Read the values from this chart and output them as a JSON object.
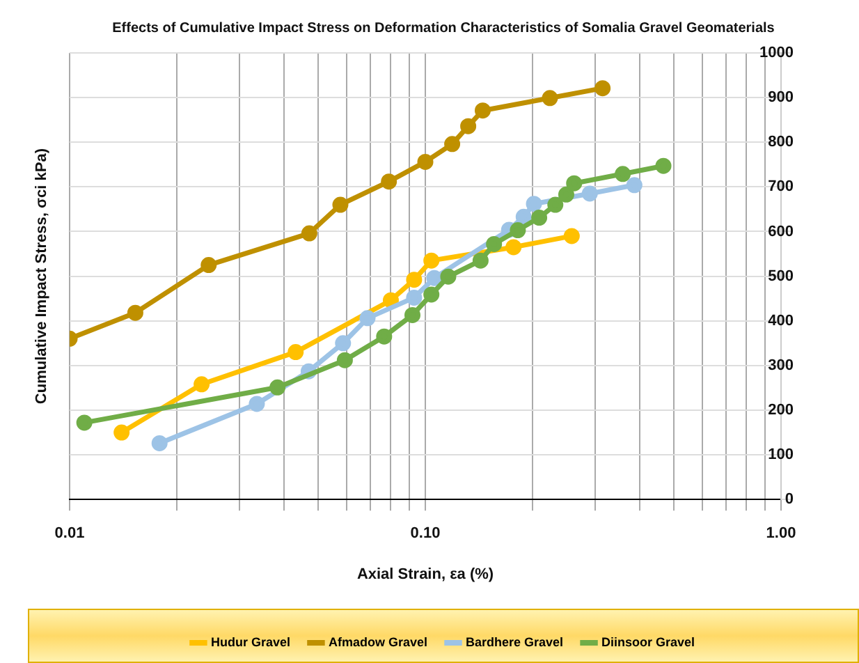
{
  "chart_data": {
    "type": "line",
    "title": "Effects of Cumulative Impact Stress on Deformation Characteristics of Somalia Gravel Geomaterials",
    "xlabel": "Axial Strain, εa (%)",
    "ylabel": "Cumulative Impact Stress, σci kPa)",
    "log": "x",
    "xlim": [
      0.01,
      1
    ],
    "ylim": [
      0,
      1000
    ],
    "xticks": [
      {
        "value": 0.01,
        "label": "0.01"
      },
      {
        "value": 0.02,
        "label": null
      },
      {
        "value": 0.03,
        "label": null
      },
      {
        "value": 0.04,
        "label": null
      },
      {
        "value": 0.05,
        "label": null
      },
      {
        "value": 0.06,
        "label": null
      },
      {
        "value": 0.07,
        "label": null
      },
      {
        "value": 0.08,
        "label": null
      },
      {
        "value": 0.09,
        "label": null
      },
      {
        "value": 0.1,
        "label": "0.10"
      },
      {
        "value": 0.2,
        "label": null
      },
      {
        "value": 0.3,
        "label": null
      },
      {
        "value": 0.4,
        "label": null
      },
      {
        "value": 0.5,
        "label": null
      },
      {
        "value": 0.6,
        "label": null
      },
      {
        "value": 0.7,
        "label": null
      },
      {
        "value": 0.8,
        "label": null
      },
      {
        "value": 0.9,
        "label": null
      },
      {
        "value": 1,
        "label": "1.00"
      }
    ],
    "yticks": [
      0,
      100,
      200,
      300,
      400,
      500,
      600,
      700,
      800,
      900,
      1000
    ],
    "grid": true,
    "legend": "bottom",
    "marker": "circle",
    "line_style": "solid",
    "series": [
      {
        "name": "Hudur Gravel",
        "color": "#ffc000",
        "x": [
          0.014,
          0.0235,
          0.0432,
          0.08,
          0.093,
          0.104,
          0.177,
          0.258
        ],
        "values": [
          150,
          258,
          330,
          446,
          492,
          535,
          565,
          590
        ]
      },
      {
        "name": "Afmadow Gravel",
        "color": "#bf9000",
        "x": [
          0.01,
          0.0153,
          0.0246,
          0.0472,
          0.0577,
          0.079,
          0.1,
          0.119,
          0.132,
          0.145,
          0.224,
          0.315
        ],
        "values": [
          360,
          418,
          525,
          596,
          660,
          712,
          756,
          796,
          836,
          871,
          899,
          921
        ]
      },
      {
        "name": "Bardhere Gravel",
        "color": "#9dc3e6",
        "x": [
          0.0179,
          0.0336,
          0.047,
          0.0587,
          0.0688,
          0.093,
          0.106,
          0.172,
          0.189,
          0.202,
          0.29,
          0.387
        ],
        "values": [
          126,
          214,
          287,
          350,
          406,
          452,
          496,
          604,
          633,
          662,
          685,
          704
        ]
      },
      {
        "name": "Diinsoor Gravel",
        "color": "#70ad47",
        "x": [
          0.011,
          0.0384,
          0.0594,
          0.0766,
          0.092,
          0.104,
          0.116,
          0.143,
          0.156,
          0.182,
          0.209,
          0.232,
          0.249,
          0.262,
          0.359,
          0.467
        ],
        "values": [
          172,
          251,
          312,
          365,
          413,
          459,
          499,
          535,
          572,
          603,
          631,
          660,
          683,
          708,
          729,
          747
        ]
      }
    ]
  }
}
